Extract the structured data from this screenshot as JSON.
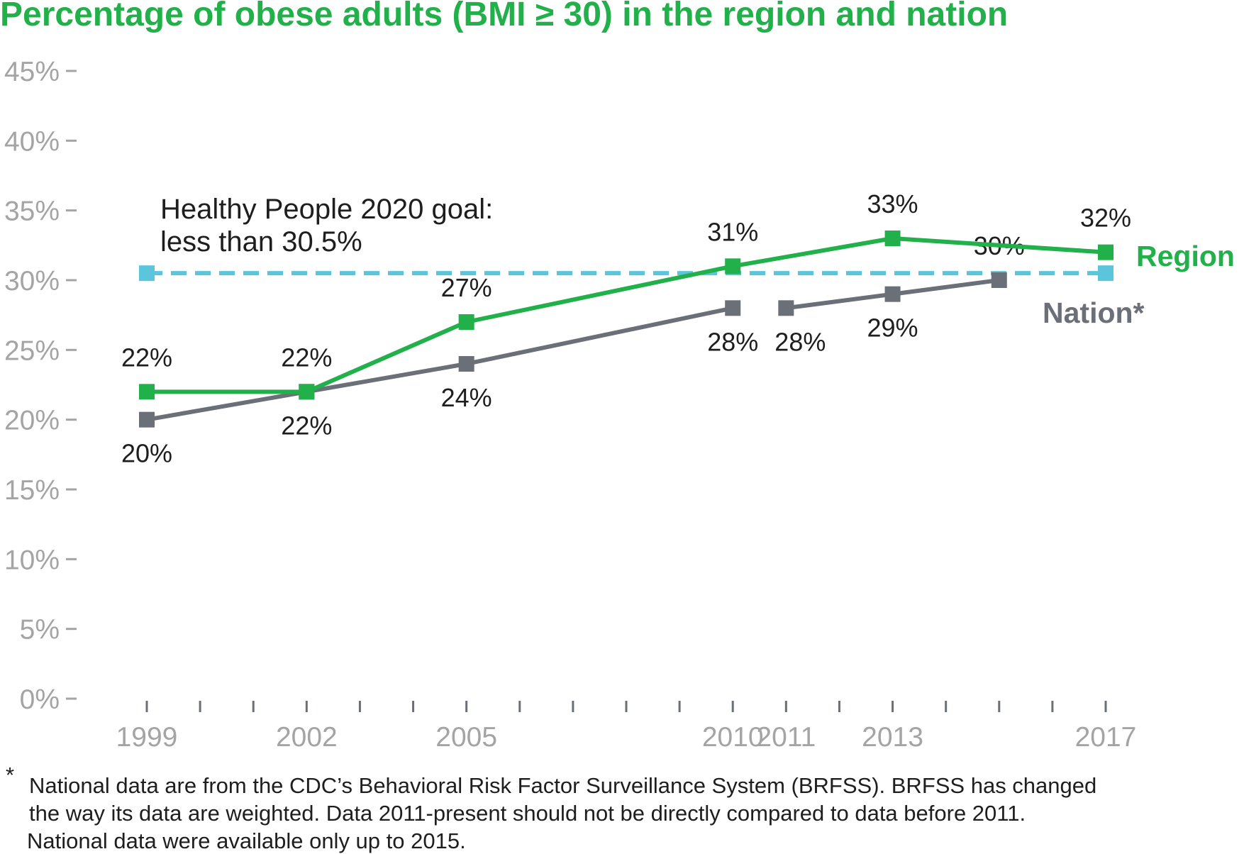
{
  "chart_data": {
    "type": "line",
    "title": "Percentage of obese adults (BMI ≥ 30) in the region and nation",
    "x_tick_labels": [
      "1999",
      "2002",
      "2005",
      "2010",
      "2011",
      "2013",
      "2017"
    ],
    "xlim": [
      1999,
      2017
    ],
    "ylim": [
      0,
      45
    ],
    "y_ticks": [
      0,
      5,
      10,
      15,
      20,
      25,
      30,
      35,
      40,
      45
    ],
    "y_tick_labels": [
      "0%",
      "5%",
      "10%",
      "15%",
      "20%",
      "25%",
      "30%",
      "35%",
      "40%",
      "45%"
    ],
    "grid": false,
    "series": [
      {
        "name": "Region",
        "color": "#22b04b",
        "x": [
          1999,
          2002,
          2005,
          2010,
          2013,
          2017
        ],
        "values": [
          22,
          22,
          27,
          31,
          33,
          32
        ],
        "labels": [
          "22%",
          "22%",
          "27%",
          "31%",
          "33%",
          "32%"
        ]
      },
      {
        "name": "Nation*",
        "color": "#6b6f78",
        "segments": [
          {
            "x": [
              1999,
              2002,
              2005,
              2010
            ],
            "values": [
              20,
              22,
              24,
              28
            ],
            "labels": [
              "20%",
              "22%",
              "24%",
              "28%"
            ]
          },
          {
            "x": [
              2011,
              2013,
              2015
            ],
            "values": [
              28,
              29,
              30
            ],
            "labels": [
              "28%",
              "29%",
              "30%"
            ]
          }
        ]
      }
    ],
    "reference_line": {
      "value": 30.5,
      "color": "#5bc5dc",
      "x": [
        1999,
        2017
      ],
      "label_lines": [
        "Healthy People 2020 goal:",
        "less than 30.5%"
      ]
    },
    "footnote": {
      "marker": "*",
      "lines": [
        "National data are from the CDC’s Behavioral Risk Factor Surveillance System (BRFSS). BRFSS has changed",
        "the way its data are weighted. Data 2011-present should not be directly compared to data before 2011.",
        "National data were available only up to 2015."
      ]
    },
    "title_color": "#22b04b",
    "axis_color": "#a4a4a4"
  }
}
